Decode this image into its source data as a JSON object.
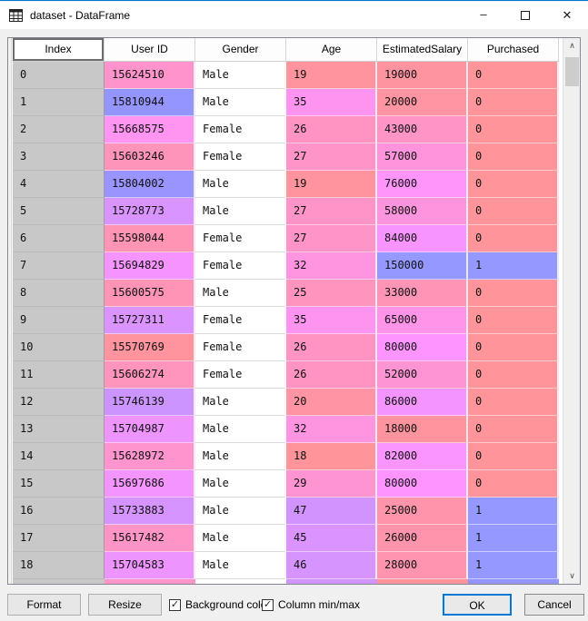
{
  "window": {
    "title": "dataset - DataFrame",
    "minimize_glyph": "–",
    "close_glyph": "✕"
  },
  "colors": {
    "accent": "#0078d7",
    "index_cell_bg": "#c8c8c8",
    "heat_min_bg": "#ff9496",
    "heat_max_bg": "#9496ff"
  },
  "table": {
    "columns": [
      {
        "label": "Index",
        "type": "index"
      },
      {
        "label": "User ID",
        "type": "number",
        "color_min": 15566689,
        "color_max": 15815236
      },
      {
        "label": "Gender",
        "type": "text"
      },
      {
        "label": "Age",
        "type": "number",
        "color_min": 18,
        "color_max": 60
      },
      {
        "label": "EstimatedSalary",
        "type": "number",
        "color_min": 15000,
        "color_max": 150000
      },
      {
        "label": "Purchased",
        "type": "number",
        "color_min": 0,
        "color_max": 1
      }
    ],
    "rows": [
      [
        "0",
        "15624510",
        "Male",
        "19",
        "19000",
        "0"
      ],
      [
        "1",
        "15810944",
        "Male",
        "35",
        "20000",
        "0"
      ],
      [
        "2",
        "15668575",
        "Female",
        "26",
        "43000",
        "0"
      ],
      [
        "3",
        "15603246",
        "Female",
        "27",
        "57000",
        "0"
      ],
      [
        "4",
        "15804002",
        "Male",
        "19",
        "76000",
        "0"
      ],
      [
        "5",
        "15728773",
        "Male",
        "27",
        "58000",
        "0"
      ],
      [
        "6",
        "15598044",
        "Female",
        "27",
        "84000",
        "0"
      ],
      [
        "7",
        "15694829",
        "Female",
        "32",
        "150000",
        "1"
      ],
      [
        "8",
        "15600575",
        "Male",
        "25",
        "33000",
        "0"
      ],
      [
        "9",
        "15727311",
        "Female",
        "35",
        "65000",
        "0"
      ],
      [
        "10",
        "15570769",
        "Female",
        "26",
        "80000",
        "0"
      ],
      [
        "11",
        "15606274",
        "Female",
        "26",
        "52000",
        "0"
      ],
      [
        "12",
        "15746139",
        "Male",
        "20",
        "86000",
        "0"
      ],
      [
        "13",
        "15704987",
        "Male",
        "32",
        "18000",
        "0"
      ],
      [
        "14",
        "15628972",
        "Male",
        "18",
        "82000",
        "0"
      ],
      [
        "15",
        "15697686",
        "Male",
        "29",
        "80000",
        "0"
      ],
      [
        "16",
        "15733883",
        "Male",
        "47",
        "25000",
        "1"
      ],
      [
        "17",
        "15617482",
        "Male",
        "45",
        "26000",
        "1"
      ],
      [
        "18",
        "15704583",
        "Male",
        "46",
        "28000",
        "1"
      ]
    ],
    "partial_row_colors": [
      "#c8c8c8",
      "#ff94c9",
      "#ffffff",
      "#d094ff",
      "#ff949c",
      "#9496ff"
    ]
  },
  "scrollbar": {
    "up_glyph": "∧",
    "down_glyph": "∨"
  },
  "footer": {
    "format_label": "Format",
    "resize_label": "Resize",
    "background_color_label": "Background color",
    "background_color_checked": true,
    "column_minmax_label": "Column min/max",
    "column_minmax_checked": true,
    "ok_label": "OK",
    "cancel_label": "Cancel",
    "checkmark_glyph": "✓"
  }
}
